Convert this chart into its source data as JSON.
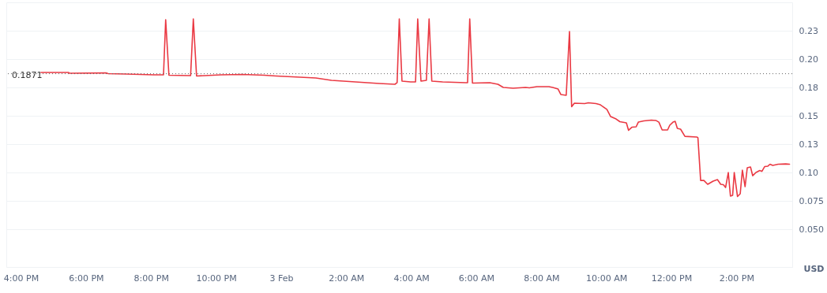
{
  "chart_data": {
    "type": "line",
    "ylabel": "USD",
    "x": [
      "--02-02T16:37",
      "--02-02T17:28",
      "--02-02T17:29",
      "--02-02T18:37",
      "--02-02T18:41",
      "--02-02T19:14",
      "--02-02T20:05",
      "--02-02T20:23",
      "--02-02T20:27",
      "--02-02T20:33",
      "--02-02T21:13",
      "--02-02T21:18",
      "--02-02T21:24",
      "--02-02T22:09",
      "--02-02T22:49",
      "--02-02T23:29",
      "--02-02T23:51",
      "--02-03T01:04",
      "--02-03T01:33",
      "--02-03T02:17",
      "--02-03T03:01",
      "--02-03T03:30",
      "--02-03T03:34",
      "--02-03T03:38",
      "--02-03T03:43",
      "--02-03T03:59",
      "--02-03T04:08",
      "--02-03T04:12",
      "--02-03T04:18",
      "--02-03T04:28",
      "--02-03T04:33",
      "--02-03T04:38",
      "--02-03T04:58",
      "--02-03T05:41",
      "--02-03T05:44",
      "--02-03T05:48",
      "--02-03T05:53",
      "--02-03T06:25",
      "--02-03T06:40",
      "--02-03T06:50",
      "--02-03T07:08",
      "--02-03T07:31",
      "--02-03T07:38",
      "--02-03T07:52",
      "--02-03T08:14",
      "--02-03T08:21",
      "--02-03T08:31",
      "--02-03T08:36",
      "--02-03T08:46",
      "--02-03T08:52",
      "--02-03T08:56",
      "--02-03T09:01",
      "--02-03T09:20",
      "--02-03T09:27",
      "--02-03T09:41",
      "--02-03T09:49",
      "--02-03T10:01",
      "--02-03T10:08",
      "--02-03T10:18",
      "--02-03T10:25",
      "--02-03T10:37",
      "--02-03T10:41",
      "--02-03T10:47",
      "--02-03T10:55",
      "--02-03T10:59",
      "--02-03T11:09",
      "--02-03T11:23",
      "--02-03T11:32",
      "--02-03T11:37",
      "--02-03T11:43",
      "--02-03T11:53",
      "--02-03T11:57",
      "--02-03T12:03",
      "--02-03T12:07",
      "--02-03T12:11",
      "--02-03T12:17",
      "--02-03T12:25",
      "--02-03T12:47",
      "--02-03T12:49",
      "--02-03T12:54",
      "--02-03T13:00",
      "--02-03T13:07",
      "--02-03T13:17",
      "--02-03T13:25",
      "--02-03T13:31",
      "--02-03T13:36",
      "--02-03T13:40",
      "--02-03T13:45",
      "--02-03T13:49",
      "--02-03T13:53",
      "--02-03T13:56",
      "--02-03T14:02",
      "--02-03T14:07",
      "--02-03T14:11",
      "--02-03T14:16",
      "--02-03T14:20",
      "--02-03T14:26",
      "--02-03T14:30",
      "--02-03T14:36",
      "--02-03T14:43",
      "--02-03T14:47",
      "--02-03T14:52",
      "--02-03T14:58",
      "--02-03T15:02",
      "--02-03T15:07",
      "--02-03T15:17",
      "--02-03T15:31",
      "--02-03T15:38"
    ],
    "series": [
      {
        "color": "#ea3943",
        "values": [
          0.1882,
          0.1882,
          0.1875,
          0.1878,
          0.1872,
          0.1868,
          0.1861,
          0.1861,
          0.2347,
          0.1858,
          0.1854,
          0.2354,
          0.1851,
          0.1861,
          0.1865,
          0.1858,
          0.1851,
          0.1833,
          0.1813,
          0.1799,
          0.1785,
          0.1778,
          0.1792,
          0.2354,
          0.1806,
          0.1799,
          0.1799,
          0.2354,
          0.1806,
          0.1813,
          0.2354,
          0.1806,
          0.1799,
          0.1792,
          0.1792,
          0.2354,
          0.1788,
          0.1792,
          0.1778,
          0.175,
          0.1743,
          0.175,
          0.1747,
          0.1757,
          0.1757,
          0.175,
          0.1736,
          0.1688,
          0.1681,
          0.2243,
          0.158,
          0.1611,
          0.1608,
          0.1615,
          0.1608,
          0.1597,
          0.1556,
          0.1493,
          0.1472,
          0.1448,
          0.1438,
          0.1372,
          0.1399,
          0.1403,
          0.1444,
          0.1455,
          0.1462,
          0.1458,
          0.1444,
          0.1375,
          0.1375,
          0.1417,
          0.1444,
          0.1451,
          0.1389,
          0.1382,
          0.1319,
          0.1313,
          0.1306,
          0.093,
          0.093,
          0.0896,
          0.0924,
          0.0938,
          0.0896,
          0.0892,
          0.0868,
          0.1,
          0.0792,
          0.0799,
          0.1,
          0.0788,
          0.0813,
          0.1021,
          0.0875,
          0.1042,
          0.1049,
          0.0972,
          0.1,
          0.1017,
          0.101,
          0.1052,
          0.1056,
          0.1073,
          0.1063,
          0.1073,
          0.1076,
          0.1073
        ]
      }
    ],
    "xlim": [
      "--02-02T15:33",
      "--02-03T15:43"
    ],
    "xticks": [
      {
        "value": "--02-02T16:00",
        "label": "4:00 PM"
      },
      {
        "value": "--02-02T18:00",
        "label": "6:00 PM"
      },
      {
        "value": "--02-02T20:00",
        "label": "8:00 PM"
      },
      {
        "value": "--02-02T22:00",
        "label": "10:00 PM"
      },
      {
        "value": "--02-03T00:00",
        "label": "3 Feb"
      },
      {
        "value": "--02-03T02:00",
        "label": "2:00 AM"
      },
      {
        "value": "--02-03T04:00",
        "label": "4:00 AM"
      },
      {
        "value": "--02-03T06:00",
        "label": "6:00 AM"
      },
      {
        "value": "--02-03T08:00",
        "label": "8:00 AM"
      },
      {
        "value": "--02-03T10:00",
        "label": "10:00 AM"
      },
      {
        "value": "--02-03T12:00",
        "label": "12:00 PM"
      },
      {
        "value": "--02-03T14:00",
        "label": "2:00 PM"
      }
    ],
    "ylim": [
      0.0167,
      0.25
    ],
    "yticks": [
      {
        "value": 0.05,
        "label": "0.050"
      },
      {
        "value": 0.075,
        "label": "0.075"
      },
      {
        "value": 0.1,
        "label": "0.10"
      },
      {
        "value": 0.125,
        "label": "0.13"
      },
      {
        "value": 0.15,
        "label": "0.15"
      },
      {
        "value": 0.175,
        "label": "0.18"
      },
      {
        "value": 0.2,
        "label": "0.20"
      },
      {
        "value": 0.225,
        "label": "0.23"
      }
    ],
    "ref_lines": [
      {
        "axis": "y",
        "value": 0.1871,
        "label": "0.1871",
        "color": "#666666",
        "line_style": "dotted"
      }
    ],
    "grid": "y",
    "marker": "none",
    "line_style": "solid"
  }
}
